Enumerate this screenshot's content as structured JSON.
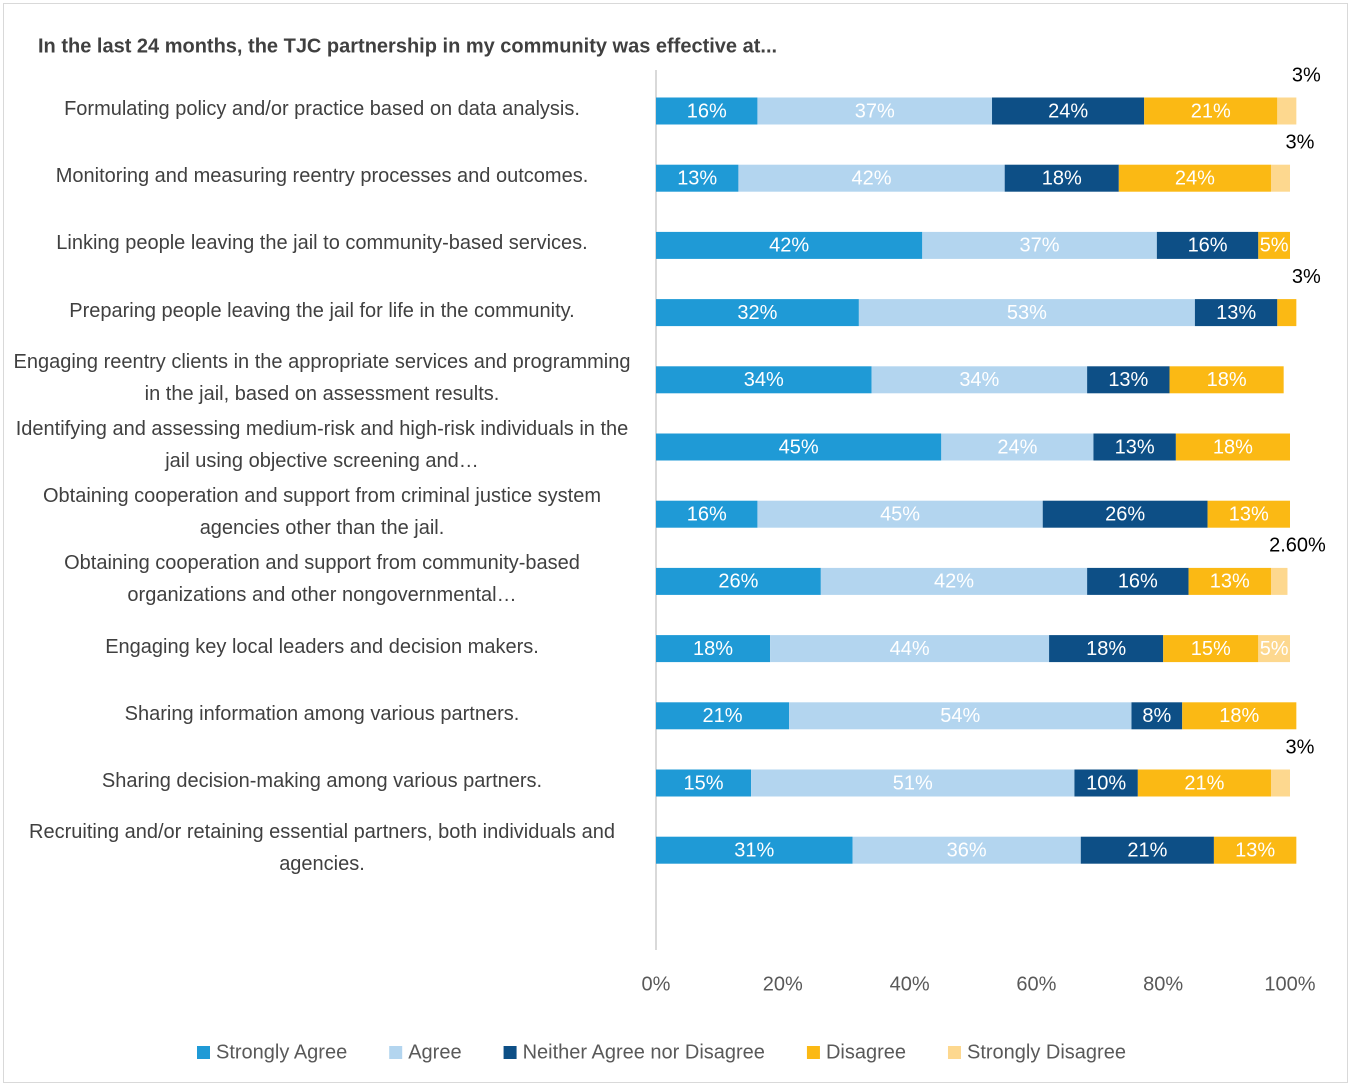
{
  "chart_data": {
    "type": "stacked-bar-horizontal",
    "title": "In the last 24 months, the TJC partnership in my community was effective at...",
    "categories": [
      "Formulating policy and/or practice based on data analysis.",
      "Monitoring and measuring reentry processes and outcomes.",
      "Linking people leaving the jail to community-based services.",
      "Preparing people leaving the jail for life in the community.",
      "Engaging reentry clients in the appropriate services and programming in the jail, based on assessment results.",
      "Identifying and assessing medium-risk and high-risk individuals in the jail using objective screening and…",
      "Obtaining cooperation and support from criminal justice system agencies other than the jail.",
      "Obtaining cooperation and support from community-based organizations and other nongovernmental…",
      "Engaging key local leaders and decision makers.",
      "Sharing information among various partners.",
      "Sharing decision-making among various partners.",
      "Recruiting and/or retaining essential partners, both individuals and agencies."
    ],
    "series": [
      {
        "name": "Strongly Agree",
        "color": "#1f9ad6",
        "values": [
          16,
          13,
          42,
          32,
          34,
          45,
          16,
          26,
          18,
          21,
          15,
          31
        ],
        "value_labels": [
          "16%",
          "13%",
          "42%",
          "32%",
          "34%",
          "45%",
          "16%",
          "26%",
          "18%",
          "21%",
          "15%",
          "31%"
        ]
      },
      {
        "name": "Agree",
        "color": "#b3d5ef",
        "values": [
          37,
          42,
          37,
          53,
          34,
          24,
          45,
          42,
          44,
          54,
          51,
          36
        ],
        "value_labels": [
          "37%",
          "42%",
          "37%",
          "53%",
          "34%",
          "24%",
          "45%",
          "42%",
          "44%",
          "54%",
          "51%",
          "36%"
        ]
      },
      {
        "name": "Neither Agree nor Disagree",
        "color": "#0d4f86",
        "values": [
          24,
          18,
          16,
          13,
          13,
          13,
          26,
          16,
          18,
          8,
          10,
          21
        ],
        "value_labels": [
          "24%",
          "18%",
          "16%",
          "13%",
          "13%",
          "13%",
          "26%",
          "16%",
          "18%",
          "8%",
          "10%",
          "21%"
        ]
      },
      {
        "name": "Disagree",
        "color": "#fbb914",
        "values": [
          21,
          24,
          5,
          3,
          18,
          18,
          13,
          13,
          15,
          18,
          21,
          13
        ],
        "value_labels": [
          "21%",
          "24%",
          "5%",
          "3%",
          "18%",
          "18%",
          "13%",
          "13%",
          "15%",
          "18%",
          "21%",
          "13%"
        ]
      },
      {
        "name": "Strongly Disagree",
        "color": "#fdd88f",
        "values": [
          3,
          3,
          null,
          null,
          null,
          null,
          null,
          2.6,
          5,
          null,
          3,
          null
        ],
        "value_labels": [
          "3%",
          "3%",
          null,
          null,
          null,
          null,
          null,
          "2.60%",
          "5%",
          null,
          "3%",
          null
        ]
      }
    ],
    "xlim": [
      0,
      100
    ],
    "xticks": [
      {
        "value": 0,
        "label": "0%"
      },
      {
        "value": 20,
        "label": "20%"
      },
      {
        "value": 40,
        "label": "40%"
      },
      {
        "value": 60,
        "label": "60%"
      },
      {
        "value": 80,
        "label": "80%"
      },
      {
        "value": 100,
        "label": "100%"
      }
    ],
    "legend": "bottom"
  }
}
